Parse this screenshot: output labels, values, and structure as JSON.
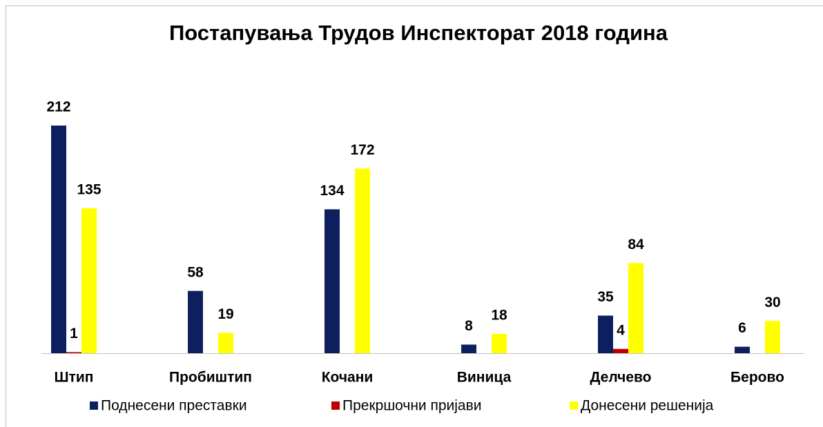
{
  "chart_data": {
    "type": "bar",
    "title": "Постапувања Трудов Инспекторат 2018 година",
    "categories": [
      "Штип",
      "Пробиштип",
      "Кочани",
      "Виница",
      "Делчево",
      "Берово"
    ],
    "series": [
      {
        "name": "Поднесени преставки",
        "color": "#0d1f5e",
        "values": [
          212,
          58,
          134,
          8,
          35,
          6
        ]
      },
      {
        "name": "Прекршочни пријави",
        "color": "#c00000",
        "values": [
          1,
          null,
          null,
          null,
          4,
          null
        ]
      },
      {
        "name": "Донесени решенија",
        "color": "#ffff00",
        "values": [
          135,
          19,
          172,
          18,
          84,
          30
        ]
      }
    ],
    "legend": "bottom"
  }
}
